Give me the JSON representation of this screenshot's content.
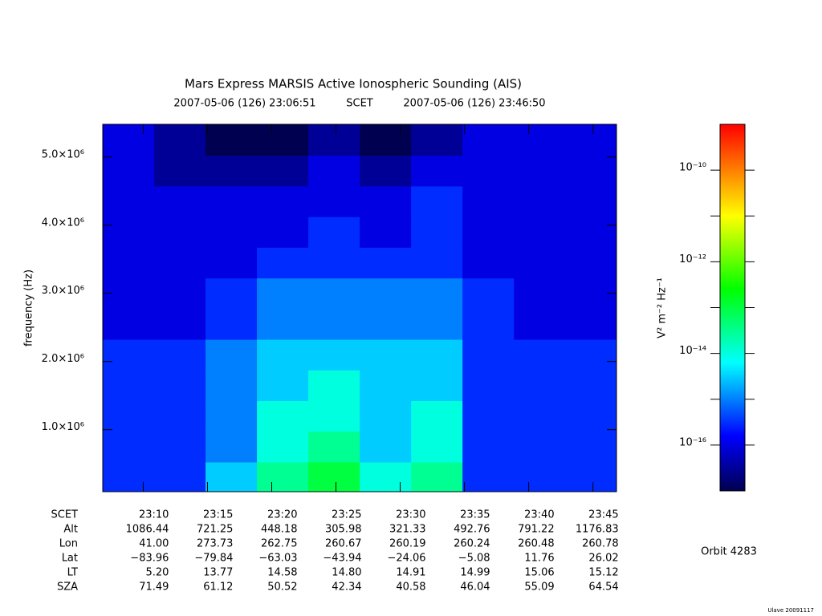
{
  "chart_data": {
    "type": "heatmap",
    "title": "Mars Express MARSIS Active Ionospheric Sounding (AIS)",
    "time_system": "SCET",
    "xlim": [
      "2007-05-06 (126) 23:06:51",
      "2007-05-06 (126) 23:46:50"
    ],
    "xticks": [
      "23:10",
      "23:15",
      "23:20",
      "23:25",
      "23:30",
      "23:35",
      "23:40",
      "23:45"
    ],
    "y_label": "frequency (Hz)",
    "ylim": [
      90000,
      5480000
    ],
    "yticks": [
      {
        "value": 1000000,
        "label": "1.0×10⁶"
      },
      {
        "value": 2000000,
        "label": "2.0×10⁶"
      },
      {
        "value": 3000000,
        "label": "3.0×10⁶"
      },
      {
        "value": 4000000,
        "label": "4.0×10⁶"
      },
      {
        "value": 5000000,
        "label": "5.0×10⁶"
      }
    ],
    "x": [
      "23:08:51",
      "23:12:51",
      "23:16:51",
      "23:20:51",
      "23:24:51",
      "23:28:51",
      "23:32:51",
      "23:36:51",
      "23:40:51",
      "23:44:51"
    ],
    "y": [
      300000,
      750000,
      1200000,
      1650000,
      2100000,
      2550000,
      3000000,
      3450000,
      3900000,
      4350000,
      4800000,
      5250000
    ],
    "z": [
      [
        3e-16,
        3e-16,
        3e-15,
        3e-14,
        1e-13,
        1e-14,
        3e-14,
        3e-16,
        3e-16,
        3e-16
      ],
      [
        3e-16,
        3e-16,
        1e-15,
        1e-14,
        3e-14,
        3e-15,
        1e-14,
        3e-16,
        3e-16,
        3e-16
      ],
      [
        3e-16,
        3e-16,
        1e-15,
        1e-14,
        1e-14,
        3e-15,
        1e-14,
        3e-16,
        3e-16,
        3e-16
      ],
      [
        3e-16,
        3e-16,
        1e-15,
        3e-15,
        1e-14,
        3e-15,
        3e-15,
        3e-16,
        3e-16,
        3e-16
      ],
      [
        3e-16,
        3e-16,
        1e-15,
        3e-15,
        3e-15,
        3e-15,
        3e-15,
        3e-16,
        3e-16,
        3e-16
      ],
      [
        1e-16,
        1e-16,
        3e-16,
        1e-15,
        1e-15,
        1e-15,
        1e-15,
        3e-16,
        1e-16,
        1e-16
      ],
      [
        1e-16,
        1e-16,
        3e-16,
        1e-15,
        1e-15,
        1e-15,
        1e-15,
        3e-16,
        1e-16,
        1e-16
      ],
      [
        1e-16,
        1e-16,
        1e-16,
        3e-16,
        3e-16,
        3e-16,
        3e-16,
        1e-16,
        1e-16,
        1e-16
      ],
      [
        1e-16,
        1e-16,
        1e-16,
        1e-16,
        3e-16,
        1e-16,
        3e-16,
        1e-16,
        1e-16,
        1e-16
      ],
      [
        1e-16,
        1e-16,
        1e-16,
        1e-16,
        1e-16,
        1e-16,
        3e-16,
        1e-16,
        1e-16,
        1e-16
      ],
      [
        1e-16,
        3e-17,
        3e-17,
        3e-17,
        1e-16,
        3e-17,
        1e-16,
        1e-16,
        1e-16,
        1e-16
      ],
      [
        1e-16,
        3e-17,
        1e-17,
        1e-17,
        3e-17,
        1e-17,
        3e-17,
        1e-16,
        1e-16,
        1e-16
      ]
    ],
    "clim": [
      1e-17,
      1e-09
    ],
    "color_scale": "log",
    "cticks": [
      {
        "value": 1e-10,
        "label": "10⁻¹⁰"
      },
      {
        "value": 1e-12,
        "label": "10⁻¹²"
      },
      {
        "value": 1e-14,
        "label": "10⁻¹⁴"
      },
      {
        "value": 1e-16,
        "label": "10⁻¹⁶"
      }
    ],
    "cminor_ticks": [
      1e-11,
      1e-13,
      1e-15
    ],
    "colorbar_label": "V² m⁻² Hz⁻¹",
    "ephemeris": [
      {
        "label": "Alt",
        "values": [
          "1086.44",
          "721.25",
          "448.18",
          "305.98",
          "321.33",
          "492.76",
          "791.22",
          "1176.83"
        ]
      },
      {
        "label": "Lon",
        "values": [
          "41.00",
          "273.73",
          "262.75",
          "260.67",
          "260.19",
          "260.24",
          "260.48",
          "260.78"
        ]
      },
      {
        "label": "Lat",
        "values": [
          "−83.96",
          "−79.84",
          "−63.03",
          "−43.94",
          "−24.06",
          "−5.08",
          "11.76",
          "26.02"
        ]
      },
      {
        "label": "LT",
        "values": [
          "5.20",
          "13.77",
          "14.58",
          "14.80",
          "14.91",
          "14.99",
          "15.06",
          "15.12"
        ]
      },
      {
        "label": "SZA",
        "values": [
          "71.49",
          "61.12",
          "50.52",
          "42.34",
          "40.58",
          "46.04",
          "55.09",
          "64.54"
        ]
      }
    ],
    "orbit": "Orbit 4283",
    "footer": "Ulave 20091117"
  }
}
